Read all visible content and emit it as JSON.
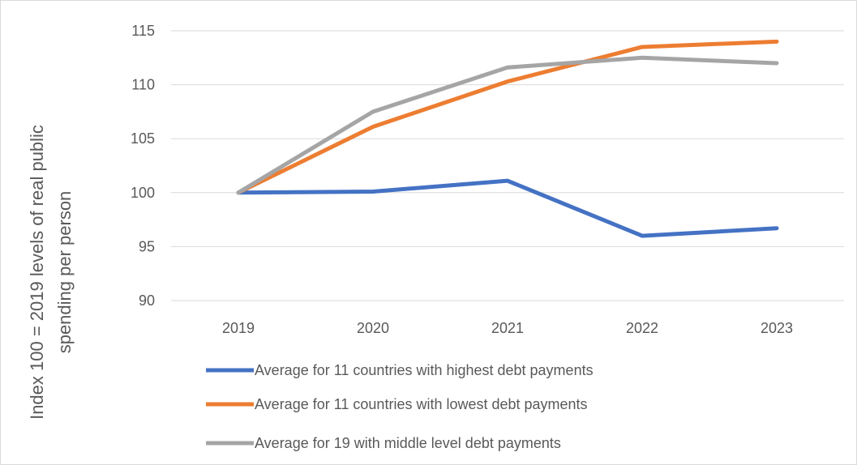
{
  "chart_data": {
    "type": "line",
    "title": "",
    "xlabel": "",
    "ylabel_lines": [
      "Index 100 = 2019 levels of real public",
      "spending per person"
    ],
    "categories": [
      "2019",
      "2020",
      "2021",
      "2022",
      "2023"
    ],
    "ylim": [
      90,
      115
    ],
    "yticks": [
      90,
      95,
      100,
      105,
      110,
      115
    ],
    "grid": "horizontal",
    "legend": "bottom",
    "series": [
      {
        "name": "Average for 11 countries with highest debt payments",
        "color": "#4472C4",
        "values": [
          100,
          100.1,
          101.1,
          96.0,
          96.7
        ]
      },
      {
        "name": "Average for 11 countries with lowest debt payments",
        "color": "#ED7D31",
        "values": [
          100,
          106.1,
          110.3,
          113.5,
          114.0
        ]
      },
      {
        "name": "Average for 19 with middle level debt payments",
        "color": "#A5A5A5",
        "values": [
          100,
          107.5,
          111.6,
          112.5,
          112.0
        ]
      }
    ]
  }
}
